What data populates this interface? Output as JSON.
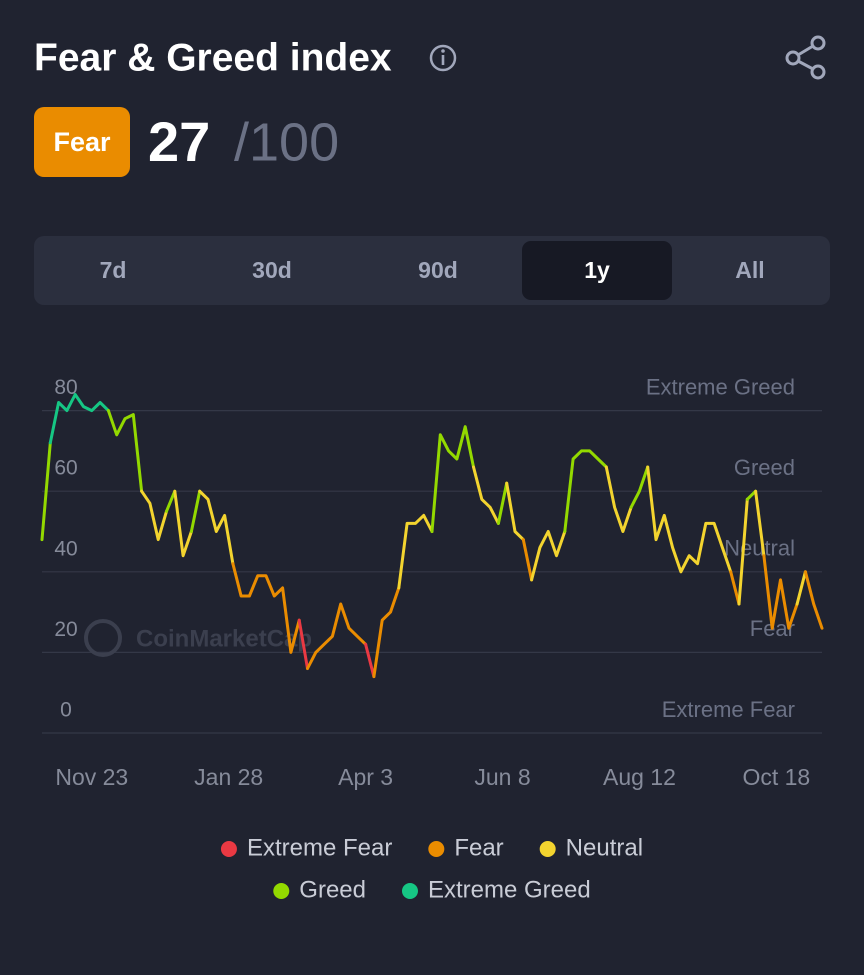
{
  "header": {
    "title": "Fear & Greed index",
    "badge": "Fear",
    "value": "27",
    "max": "/100"
  },
  "tabs": [
    "7d",
    "30d",
    "90d",
    "1y",
    "All"
  ],
  "selected_tab": 3,
  "chart_data": {
    "type": "line",
    "watermark": "CoinMarketCap",
    "values": [
      48,
      72,
      82,
      80,
      84,
      81,
      80,
      82,
      80,
      74,
      78,
      79,
      60,
      57,
      48,
      55,
      60,
      44,
      50,
      60,
      58,
      50,
      54,
      42,
      34,
      34,
      39,
      39,
      34,
      36,
      20,
      28,
      16,
      20,
      22,
      24,
      32,
      26,
      24,
      22,
      14,
      28,
      30,
      36,
      52,
      52,
      54,
      50,
      74,
      70,
      68,
      76,
      66,
      58,
      56,
      52,
      62,
      50,
      48,
      38,
      46,
      50,
      44,
      50,
      68,
      70,
      70,
      68,
      66,
      56,
      50,
      56,
      60,
      66,
      48,
      54,
      46,
      40,
      44,
      42,
      52,
      52,
      46,
      40,
      32,
      58,
      60,
      44,
      26,
      38,
      26,
      32,
      40,
      32,
      26
    ],
    "xlim": [
      0,
      94
    ],
    "xticks": [
      {
        "value": 6,
        "label": "Nov 23"
      },
      {
        "value": 22.5,
        "label": "Jan 28"
      },
      {
        "value": 39,
        "label": "Apr 3"
      },
      {
        "value": 55.5,
        "label": "Jun 8"
      },
      {
        "value": 72,
        "label": "Aug 12"
      },
      {
        "value": 88.5,
        "label": "Oct 18"
      }
    ],
    "ylim": [
      0,
      95
    ],
    "yticks": [
      0,
      20,
      40,
      60,
      80
    ],
    "grid": true,
    "zones": [
      {
        "name": "Extreme Fear",
        "color": "#ea3943",
        "range": [
          0,
          20
        ]
      },
      {
        "name": "Fear",
        "color": "#ea8c00",
        "range": [
          20,
          40
        ]
      },
      {
        "name": "Neutral",
        "color": "#f3d42f",
        "range": [
          40,
          60
        ]
      },
      {
        "name": "Greed",
        "color": "#93d900",
        "range": [
          60,
          80
        ]
      },
      {
        "name": "Extreme Greed",
        "color": "#16c784",
        "range": [
          80,
          100
        ]
      }
    ]
  }
}
